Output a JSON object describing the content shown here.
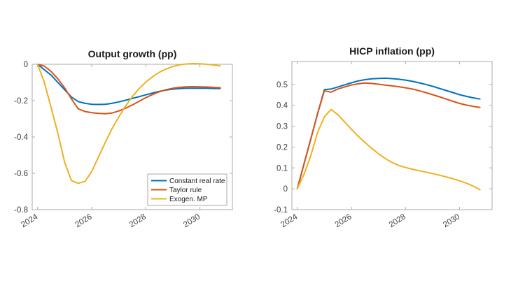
{
  "figure": {
    "background": "#ffffff"
  },
  "palette": {
    "blue": "#0072BD",
    "orange": "#D95319",
    "yellow": "#EDB120",
    "axis_box": "#ababab",
    "tick_text": "#3b3b3b",
    "title_text": "#1a1a1a",
    "legend_border": "#a8a8a8",
    "legend_bg": "#ffffff"
  },
  "legend": {
    "entries": [
      "Constant real rate",
      "Taylor rule",
      "Exogen. MP"
    ],
    "position": "southeast",
    "visible_on_chart": "Output growth (pp)"
  },
  "chart_data": [
    {
      "type": "line",
      "title": "Output growth (pp)",
      "xlabel": "",
      "ylabel": "",
      "xlim": [
        2023.8,
        2031.2
      ],
      "ylim": [
        -0.8,
        0
      ],
      "xticks": [
        2024,
        2026,
        2028,
        2030
      ],
      "xtick_labels": [
        "2024",
        "2026",
        "2028",
        "2030"
      ],
      "xtick_angle": 32,
      "yticks": [
        0,
        -0.2,
        -0.4,
        -0.6,
        -0.8
      ],
      "ytick_labels": [
        "0",
        "-0.2",
        "-0.4",
        "-0.6",
        "-0.8"
      ],
      "grid": false,
      "box": true,
      "legend_position": "southeast",
      "show_legend": true,
      "x": [
        2024.0,
        2024.25,
        2024.5,
        2024.75,
        2025.0,
        2025.25,
        2025.5,
        2025.75,
        2026.0,
        2026.25,
        2026.5,
        2026.75,
        2027.0,
        2027.25,
        2027.5,
        2027.75,
        2028.0,
        2028.25,
        2028.5,
        2028.75,
        2029.0,
        2029.25,
        2029.5,
        2029.75,
        2030.0,
        2030.25,
        2030.5,
        2030.75
      ],
      "series": [
        {
          "name": "Constant real rate",
          "color_key": "blue",
          "values": [
            0,
            -0.03,
            -0.06,
            -0.1,
            -0.14,
            -0.18,
            -0.205,
            -0.215,
            -0.22,
            -0.221,
            -0.22,
            -0.215,
            -0.207,
            -0.198,
            -0.188,
            -0.178,
            -0.168,
            -0.158,
            -0.149,
            -0.142,
            -0.137,
            -0.134,
            -0.132,
            -0.132,
            -0.132,
            -0.132,
            -0.133,
            -0.134
          ]
        },
        {
          "name": "Taylor rule",
          "color_key": "orange",
          "values": [
            0,
            -0.01,
            -0.04,
            -0.08,
            -0.13,
            -0.19,
            -0.245,
            -0.26,
            -0.266,
            -0.27,
            -0.272,
            -0.268,
            -0.257,
            -0.242,
            -0.224,
            -0.204,
            -0.184,
            -0.166,
            -0.151,
            -0.14,
            -0.132,
            -0.127,
            -0.124,
            -0.123,
            -0.124,
            -0.125,
            -0.127,
            -0.129
          ]
        },
        {
          "name": "Exogen. MP",
          "color_key": "yellow",
          "values": [
            0,
            -0.1,
            -0.24,
            -0.38,
            -0.54,
            -0.64,
            -0.655,
            -0.645,
            -0.59,
            -0.51,
            -0.43,
            -0.355,
            -0.29,
            -0.23,
            -0.178,
            -0.134,
            -0.098,
            -0.068,
            -0.044,
            -0.026,
            -0.012,
            -0.003,
            0.002,
            0.004,
            0.003,
            0.0,
            -0.004,
            -0.009
          ]
        }
      ]
    },
    {
      "type": "line",
      "title": "HICP inflation (pp)",
      "xlabel": "",
      "ylabel": "",
      "xlim": [
        2023.8,
        2031.2
      ],
      "ylim": [
        -0.1,
        0.61
      ],
      "xticks": [
        2024,
        2026,
        2028,
        2030
      ],
      "xtick_labels": [
        "2024",
        "2026",
        "2028",
        "2030"
      ],
      "xtick_angle": 32,
      "yticks": [
        0.5,
        0.4,
        0.3,
        0.2,
        0.1,
        0,
        -0.1
      ],
      "ytick_labels": [
        "0.5",
        "0.4",
        "0.3",
        "0.2",
        "0.1",
        "0",
        "-0.1"
      ],
      "grid": false,
      "box": true,
      "show_legend": false,
      "x": [
        2024.0,
        2024.25,
        2024.5,
        2024.75,
        2025.0,
        2025.25,
        2025.5,
        2025.75,
        2026.0,
        2026.25,
        2026.5,
        2026.75,
        2027.0,
        2027.25,
        2027.5,
        2027.75,
        2028.0,
        2028.25,
        2028.5,
        2028.75,
        2029.0,
        2029.25,
        2029.5,
        2029.75,
        2030.0,
        2030.25,
        2030.5,
        2030.75
      ],
      "series": [
        {
          "name": "Constant real rate",
          "color_key": "blue",
          "values": [
            0,
            0.12,
            0.24,
            0.36,
            0.475,
            0.478,
            0.488,
            0.498,
            0.508,
            0.517,
            0.523,
            0.527,
            0.529,
            0.53,
            0.528,
            0.525,
            0.521,
            0.515,
            0.508,
            0.5,
            0.491,
            0.481,
            0.471,
            0.461,
            0.451,
            0.443,
            0.436,
            0.43
          ]
        },
        {
          "name": "Taylor rule",
          "color_key": "orange",
          "values": [
            0,
            0.12,
            0.24,
            0.36,
            0.47,
            0.463,
            0.478,
            0.488,
            0.497,
            0.503,
            0.507,
            0.505,
            0.501,
            0.497,
            0.493,
            0.489,
            0.484,
            0.478,
            0.47,
            0.461,
            0.451,
            0.441,
            0.43,
            0.419,
            0.409,
            0.401,
            0.395,
            0.39
          ]
        },
        {
          "name": "Exogen. MP",
          "color_key": "yellow",
          "values": [
            0,
            0.07,
            0.16,
            0.27,
            0.345,
            0.38,
            0.355,
            0.32,
            0.285,
            0.252,
            0.222,
            0.194,
            0.168,
            0.145,
            0.126,
            0.112,
            0.102,
            0.094,
            0.087,
            0.08,
            0.073,
            0.065,
            0.057,
            0.048,
            0.038,
            0.027,
            0.013,
            -0.005
          ]
        }
      ]
    }
  ]
}
